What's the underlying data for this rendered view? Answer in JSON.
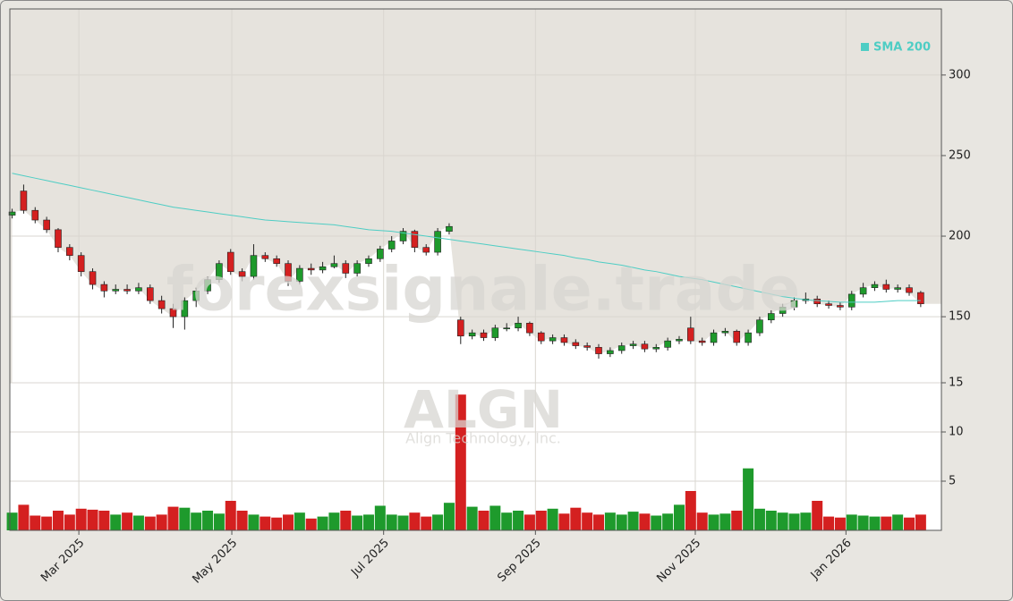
{
  "chart_data": {
    "type": "candlestick",
    "watermark": "forexsignale.trade",
    "symbol": "ALGN",
    "company": "Align Technology, Inc.",
    "xlim": [
      -0.2,
      80.8
    ],
    "xticks": [
      {
        "value": 5.8,
        "label": "Mar 2025"
      },
      {
        "value": 19.1,
        "label": "May 2025"
      },
      {
        "value": 32.3,
        "label": "Jul 2025"
      },
      {
        "value": 45.5,
        "label": "Sep 2025"
      },
      {
        "value": 59.4,
        "label": "Nov 2025"
      },
      {
        "value": 72.5,
        "label": "Jan 2026"
      }
    ],
    "ylim": [
      109,
      341
    ],
    "yticks": [
      150,
      200,
      250,
      300
    ],
    "grid": true,
    "up_color": "#1e9a2c",
    "down_color": "#d42020",
    "ohlc": {
      "open": [
        213,
        228,
        216,
        210,
        204,
        193,
        188,
        178,
        170,
        166,
        167,
        166,
        168,
        160,
        155,
        150,
        160,
        166,
        173,
        190,
        178,
        175,
        188,
        186,
        183,
        172,
        180,
        179,
        181,
        183,
        177,
        183,
        186,
        192,
        197,
        203,
        193,
        190,
        203,
        148,
        138,
        140,
        137,
        143,
        143,
        146,
        140,
        135,
        137,
        134,
        132,
        131,
        127,
        129,
        132,
        133,
        130,
        131,
        135,
        143,
        135,
        134,
        140,
        141,
        134,
        140,
        148,
        152,
        156,
        160,
        161,
        158,
        157,
        156,
        164,
        168,
        170,
        167,
        168,
        165
      ],
      "high": [
        217,
        232,
        218,
        212,
        205,
        195,
        190,
        180,
        172,
        170,
        170,
        171,
        170,
        163,
        158,
        162,
        168,
        175,
        185,
        192,
        180,
        195,
        190,
        188,
        185,
        182,
        183,
        184,
        188,
        185,
        185,
        188,
        194,
        200,
        205,
        204,
        195,
        205,
        208,
        150,
        142,
        142,
        145,
        146,
        150,
        147,
        141,
        139,
        139,
        136,
        134,
        133,
        131,
        134,
        135,
        135,
        133,
        137,
        138,
        150,
        137,
        142,
        143,
        142,
        142,
        150,
        154,
        158,
        162,
        165,
        163,
        160,
        159,
        166,
        171,
        172,
        173,
        170,
        170,
        166
      ],
      "low": [
        211,
        214,
        208,
        202,
        190,
        185,
        175,
        167,
        162,
        164,
        164,
        164,
        158,
        152,
        143,
        142,
        156,
        164,
        171,
        176,
        172,
        173,
        184,
        181,
        169,
        170,
        176,
        177,
        180,
        174,
        175,
        181,
        184,
        190,
        195,
        190,
        188,
        188,
        201,
        133,
        136,
        135,
        135,
        141,
        141,
        138,
        133,
        133,
        132,
        130,
        129,
        124,
        125,
        127,
        130,
        128,
        128,
        129,
        133,
        133,
        132,
        132,
        138,
        132,
        132,
        138,
        146,
        150,
        154,
        158,
        156,
        155,
        154,
        154,
        162,
        166,
        165,
        165,
        163,
        156
      ],
      "close": [
        215,
        216,
        210,
        204,
        193,
        188,
        178,
        170,
        166,
        167,
        166,
        168,
        160,
        155,
        150,
        160,
        166,
        173,
        183,
        178,
        175,
        188,
        186,
        183,
        172,
        180,
        179,
        181,
        183,
        177,
        183,
        186,
        192,
        197,
        203,
        193,
        190,
        203,
        206,
        138,
        140,
        137,
        143,
        143,
        146,
        140,
        135,
        137,
        134,
        132,
        131,
        127,
        129,
        132,
        133,
        130,
        131,
        135,
        136,
        135,
        134,
        140,
        141,
        134,
        140,
        148,
        152,
        156,
        160,
        161,
        158,
        157,
        156,
        164,
        168,
        170,
        167,
        168,
        165,
        158
      ]
    },
    "sma": {
      "name": "SMA 200",
      "color": "#4ecdc4",
      "values": [
        239,
        237.5,
        236,
        234.5,
        233,
        231.5,
        230,
        228.5,
        227,
        225.5,
        224,
        222.5,
        221,
        219.5,
        218,
        217,
        216,
        215,
        214,
        213,
        212,
        211,
        210,
        209.5,
        209,
        208.5,
        208,
        207.5,
        207,
        206,
        205,
        204,
        203.5,
        203,
        202,
        201,
        200,
        199,
        198,
        197,
        196,
        195,
        194,
        193,
        192,
        191,
        190,
        189,
        188,
        186.5,
        185.5,
        184,
        183,
        182,
        180.5,
        179,
        178,
        176.5,
        175,
        174,
        173,
        171.5,
        170,
        168.5,
        167,
        165.5,
        164,
        162.5,
        161.5,
        160.5,
        160,
        159.5,
        159,
        159,
        159,
        159,
        159.5,
        160,
        160,
        160
      ]
    },
    "volume": {
      "ylim": [
        0,
        15
      ],
      "yticks": [
        5,
        10,
        15
      ],
      "values": [
        1.8,
        2.6,
        1.5,
        1.4,
        2.0,
        1.6,
        2.2,
        2.1,
        2.0,
        1.6,
        1.8,
        1.5,
        1.4,
        1.6,
        2.4,
        2.3,
        1.8,
        2.0,
        1.7,
        3.0,
        2.0,
        1.6,
        1.4,
        1.3,
        1.6,
        1.8,
        1.2,
        1.4,
        1.8,
        2.0,
        1.5,
        1.6,
        2.5,
        1.6,
        1.5,
        1.8,
        1.4,
        1.6,
        2.8,
        13.8,
        2.4,
        2.0,
        2.5,
        1.8,
        2.0,
        1.6,
        2.0,
        2.2,
        1.7,
        2.3,
        1.8,
        1.6,
        1.8,
        1.6,
        1.9,
        1.7,
        1.5,
        1.7,
        2.6,
        4.0,
        1.8,
        1.6,
        1.7,
        2.0,
        6.3,
        2.2,
        2.0,
        1.8,
        1.7,
        1.8,
        3.0,
        1.4,
        1.3,
        1.6,
        1.5,
        1.4,
        1.4,
        1.6,
        1.3,
        1.6
      ]
    }
  }
}
